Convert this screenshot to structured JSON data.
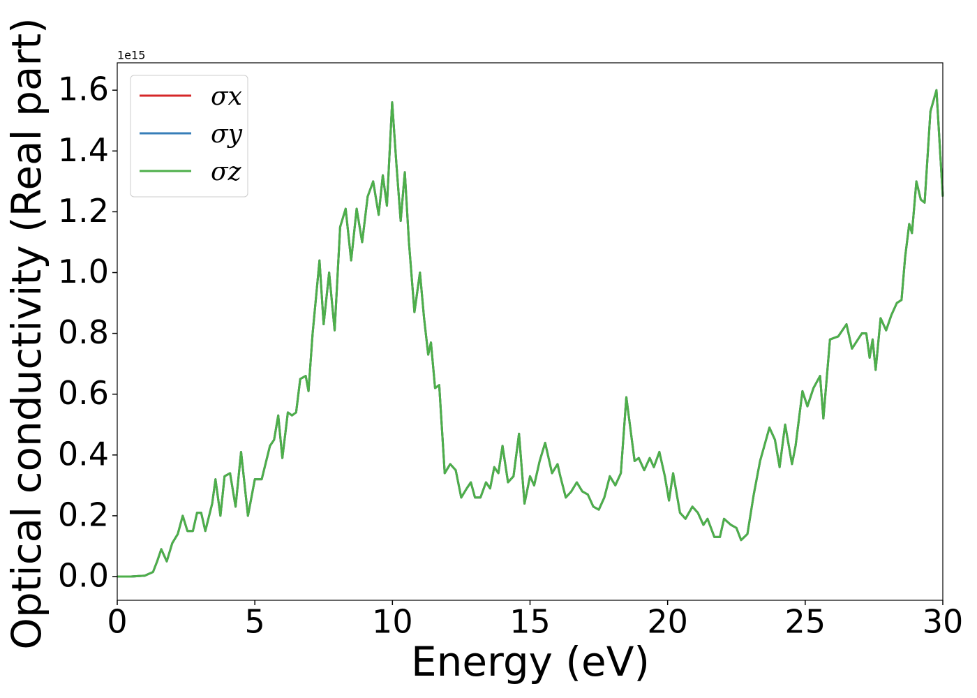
{
  "chart_data": {
    "type": "line",
    "xlabel": "Energy (eV)",
    "ylabel": "Optical conductivity (Real part)",
    "y_offset_label": "1e15",
    "xlim": [
      0,
      30
    ],
    "ylim": [
      -0.078,
      1.69
    ],
    "xticks": [
      0,
      5,
      10,
      15,
      20,
      25,
      30
    ],
    "yticks": [
      {
        "value": 0,
        "label": "0.0"
      },
      0.2,
      0.4,
      0.6,
      0.8,
      {
        "value": 1,
        "label": "1.0"
      },
      1.2,
      1.4,
      1.6
    ],
    "grid": false,
    "legend": "upper left",
    "x": [
      0,
      0.5,
      1.0,
      1.3,
      1.45,
      1.6,
      1.8,
      2.0,
      2.2,
      2.38,
      2.55,
      2.75,
      2.9,
      3.05,
      3.2,
      3.45,
      3.57,
      3.75,
      3.9,
      4.1,
      4.3,
      4.5,
      4.75,
      5.0,
      5.25,
      5.55,
      5.7,
      5.85,
      6.0,
      6.2,
      6.35,
      6.5,
      6.65,
      6.85,
      6.95,
      7.1,
      7.35,
      7.5,
      7.7,
      7.9,
      8.1,
      8.3,
      8.5,
      8.7,
      8.9,
      9.1,
      9.3,
      9.5,
      9.65,
      9.8,
      9.99,
      10.15,
      10.3,
      10.45,
      10.6,
      10.8,
      11.0,
      11.15,
      11.3,
      11.4,
      11.55,
      11.7,
      11.9,
      12.1,
      12.3,
      12.5,
      12.7,
      12.85,
      13.0,
      13.2,
      13.4,
      13.55,
      13.7,
      13.85,
      14.0,
      14.2,
      14.4,
      14.6,
      14.8,
      15.0,
      15.15,
      15.35,
      15.55,
      15.8,
      16.0,
      16.1,
      16.3,
      16.5,
      16.7,
      16.9,
      17.1,
      17.3,
      17.5,
      17.7,
      17.9,
      18.1,
      18.3,
      18.5,
      18.8,
      18.95,
      19.15,
      19.35,
      19.5,
      19.7,
      19.9,
      20.05,
      20.2,
      20.45,
      20.65,
      20.9,
      21.1,
      21.3,
      21.45,
      21.7,
      21.9,
      22.05,
      22.3,
      22.5,
      22.67,
      22.9,
      23.13,
      23.36,
      23.7,
      23.9,
      24.07,
      24.27,
      24.52,
      24.65,
      24.9,
      25.08,
      25.3,
      25.54,
      25.66,
      25.9,
      26.2,
      26.5,
      26.7,
      27.06,
      27.22,
      27.34,
      27.45,
      27.56,
      27.74,
      27.94,
      28.13,
      28.33,
      28.5,
      28.63,
      28.78,
      28.88,
      29.04,
      29.2,
      29.34,
      29.55,
      29.77,
      30
    ],
    "series": [
      {
        "name": "σx",
        "color": "#d62728",
        "values": [
          0,
          0,
          0.003,
          0.015,
          0.05,
          0.09,
          0.05,
          0.11,
          0.14,
          0.2,
          0.15,
          0.15,
          0.21,
          0.21,
          0.15,
          0.24,
          0.32,
          0.2,
          0.33,
          0.34,
          0.23,
          0.41,
          0.2,
          0.32,
          0.32,
          0.43,
          0.45,
          0.53,
          0.39,
          0.54,
          0.53,
          0.54,
          0.65,
          0.66,
          0.61,
          0.8,
          1.04,
          0.83,
          1.0,
          0.81,
          1.15,
          1.21,
          1.04,
          1.21,
          1.1,
          1.25,
          1.3,
          1.19,
          1.32,
          1.22,
          1.56,
          1.35,
          1.17,
          1.33,
          1.1,
          0.87,
          1.0,
          0.85,
          0.73,
          0.77,
          0.62,
          0.63,
          0.34,
          0.37,
          0.35,
          0.26,
          0.29,
          0.31,
          0.26,
          0.26,
          0.31,
          0.29,
          0.36,
          0.34,
          0.43,
          0.31,
          0.33,
          0.47,
          0.24,
          0.33,
          0.3,
          0.38,
          0.44,
          0.34,
          0.37,
          0.33,
          0.26,
          0.28,
          0.31,
          0.28,
          0.27,
          0.23,
          0.22,
          0.26,
          0.33,
          0.3,
          0.34,
          0.59,
          0.38,
          0.39,
          0.35,
          0.39,
          0.36,
          0.41,
          0.33,
          0.25,
          0.34,
          0.21,
          0.19,
          0.23,
          0.21,
          0.17,
          0.19,
          0.13,
          0.13,
          0.19,
          0.17,
          0.16,
          0.12,
          0.14,
          0.27,
          0.38,
          0.49,
          0.45,
          0.36,
          0.5,
          0.37,
          0.43,
          0.61,
          0.56,
          0.62,
          0.66,
          0.52,
          0.78,
          0.79,
          0.83,
          0.75,
          0.8,
          0.8,
          0.72,
          0.78,
          0.68,
          0.85,
          0.81,
          0.86,
          0.9,
          0.91,
          1.05,
          1.16,
          1.13,
          1.3,
          1.24,
          1.23,
          1.53,
          1.6,
          1.25
        ]
      },
      {
        "name": "σy",
        "color": "#377eb8",
        "values": [
          0,
          0,
          0.003,
          0.015,
          0.05,
          0.09,
          0.05,
          0.11,
          0.14,
          0.2,
          0.15,
          0.15,
          0.21,
          0.21,
          0.15,
          0.24,
          0.32,
          0.2,
          0.33,
          0.34,
          0.23,
          0.41,
          0.2,
          0.32,
          0.32,
          0.43,
          0.45,
          0.53,
          0.39,
          0.54,
          0.53,
          0.54,
          0.65,
          0.66,
          0.61,
          0.8,
          1.04,
          0.83,
          1.0,
          0.81,
          1.15,
          1.21,
          1.04,
          1.21,
          1.1,
          1.25,
          1.3,
          1.19,
          1.32,
          1.22,
          1.56,
          1.35,
          1.17,
          1.33,
          1.1,
          0.87,
          1.0,
          0.85,
          0.73,
          0.77,
          0.62,
          0.63,
          0.34,
          0.37,
          0.35,
          0.26,
          0.29,
          0.31,
          0.26,
          0.26,
          0.31,
          0.29,
          0.36,
          0.34,
          0.43,
          0.31,
          0.33,
          0.47,
          0.24,
          0.33,
          0.3,
          0.38,
          0.44,
          0.34,
          0.37,
          0.33,
          0.26,
          0.28,
          0.31,
          0.28,
          0.27,
          0.23,
          0.22,
          0.26,
          0.33,
          0.3,
          0.34,
          0.59,
          0.38,
          0.39,
          0.35,
          0.39,
          0.36,
          0.41,
          0.33,
          0.25,
          0.34,
          0.21,
          0.19,
          0.23,
          0.21,
          0.17,
          0.19,
          0.13,
          0.13,
          0.19,
          0.17,
          0.16,
          0.12,
          0.14,
          0.27,
          0.38,
          0.49,
          0.45,
          0.36,
          0.5,
          0.37,
          0.43,
          0.61,
          0.56,
          0.62,
          0.66,
          0.52,
          0.78,
          0.79,
          0.83,
          0.75,
          0.8,
          0.8,
          0.72,
          0.78,
          0.68,
          0.85,
          0.81,
          0.86,
          0.9,
          0.91,
          1.05,
          1.16,
          1.13,
          1.3,
          1.24,
          1.23,
          1.53,
          1.6,
          1.25
        ]
      },
      {
        "name": "σz",
        "color": "#4daf4a",
        "values": [
          0,
          0,
          0.003,
          0.015,
          0.05,
          0.09,
          0.05,
          0.11,
          0.14,
          0.2,
          0.15,
          0.15,
          0.21,
          0.21,
          0.15,
          0.24,
          0.32,
          0.2,
          0.33,
          0.34,
          0.23,
          0.41,
          0.2,
          0.32,
          0.32,
          0.43,
          0.45,
          0.53,
          0.39,
          0.54,
          0.53,
          0.54,
          0.65,
          0.66,
          0.61,
          0.8,
          1.04,
          0.83,
          1.0,
          0.81,
          1.15,
          1.21,
          1.04,
          1.21,
          1.1,
          1.25,
          1.3,
          1.19,
          1.32,
          1.22,
          1.56,
          1.35,
          1.17,
          1.33,
          1.1,
          0.87,
          1.0,
          0.85,
          0.73,
          0.77,
          0.62,
          0.63,
          0.34,
          0.37,
          0.35,
          0.26,
          0.29,
          0.31,
          0.26,
          0.26,
          0.31,
          0.29,
          0.36,
          0.34,
          0.43,
          0.31,
          0.33,
          0.47,
          0.24,
          0.33,
          0.3,
          0.38,
          0.44,
          0.34,
          0.37,
          0.33,
          0.26,
          0.28,
          0.31,
          0.28,
          0.27,
          0.23,
          0.22,
          0.26,
          0.33,
          0.3,
          0.34,
          0.59,
          0.38,
          0.39,
          0.35,
          0.39,
          0.36,
          0.41,
          0.33,
          0.25,
          0.34,
          0.21,
          0.19,
          0.23,
          0.21,
          0.17,
          0.19,
          0.13,
          0.13,
          0.19,
          0.17,
          0.16,
          0.12,
          0.14,
          0.27,
          0.38,
          0.49,
          0.45,
          0.36,
          0.5,
          0.37,
          0.43,
          0.61,
          0.56,
          0.62,
          0.66,
          0.52,
          0.78,
          0.79,
          0.83,
          0.75,
          0.8,
          0.8,
          0.72,
          0.78,
          0.68,
          0.85,
          0.81,
          0.86,
          0.9,
          0.91,
          1.05,
          1.16,
          1.13,
          1.3,
          1.24,
          1.23,
          1.53,
          1.6,
          1.25
        ]
      }
    ]
  }
}
